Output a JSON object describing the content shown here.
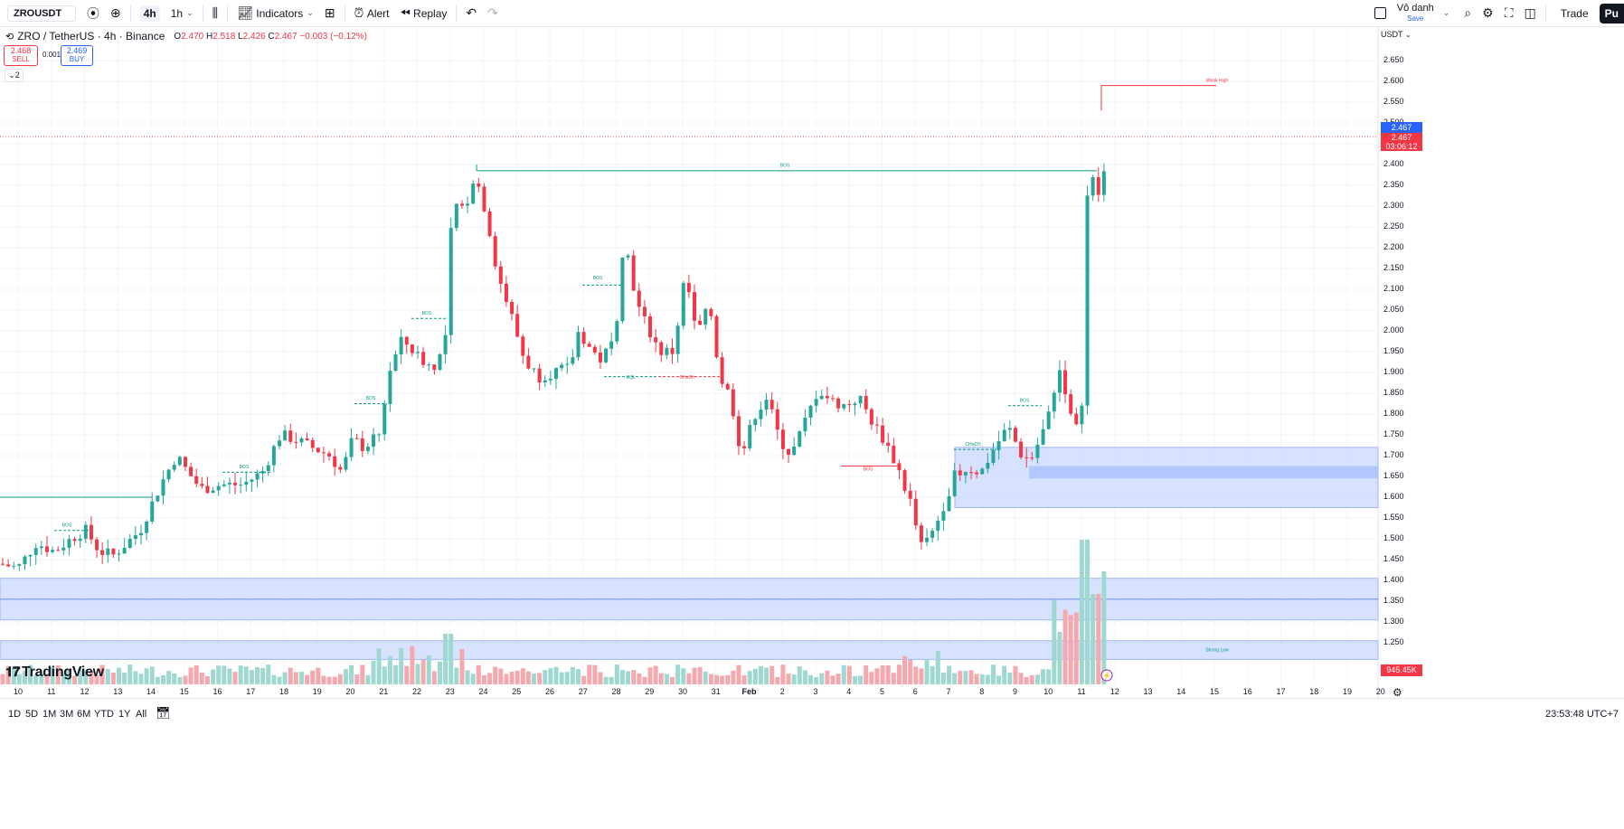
{
  "toolbar": {
    "symbol": "ZROUSDT",
    "intervals": [
      "4h",
      "1h"
    ],
    "indicators": "Indicators",
    "alert": "Alert",
    "replay": "Replay",
    "user_name": "Vô danh",
    "save": "Save",
    "trade": "Trade",
    "publish": "Pu"
  },
  "legend": {
    "title": "ZRO / TetherUS · 4h · Binance",
    "o_label": "O",
    "o": "2.470",
    "h_label": "H",
    "h": "2.518",
    "l_label": "L",
    "l": "2.426",
    "c_label": "C",
    "c": "2.467",
    "change": "−0.003 (−0.12%)"
  },
  "order": {
    "sell_price": "2.468",
    "sell_label": "SELL",
    "spread": "0.001",
    "buy_price": "2.469",
    "buy_label": "BUY",
    "collapse": "2"
  },
  "axis": {
    "currency": "USDT",
    "ticks": [
      "2.650",
      "2.600",
      "2.550",
      "2.500",
      "2.450",
      "2.400",
      "2.350",
      "2.300",
      "2.250",
      "2.200",
      "2.150",
      "2.100",
      "2.050",
      "2.000",
      "1.950",
      "1.900",
      "1.850",
      "1.800",
      "1.750",
      "1.700",
      "1.650",
      "1.600",
      "1.550",
      "1.500",
      "1.450",
      "1.400",
      "1.350",
      "1.300",
      "1.250"
    ],
    "last_price": "2.467",
    "countdown": "03:06:12",
    "volume_label": "945.45K"
  },
  "time_axis": [
    "10",
    "11",
    "12",
    "13",
    "14",
    "15",
    "16",
    "17",
    "18",
    "19",
    "20",
    "21",
    "22",
    "23",
    "24",
    "25",
    "26",
    "27",
    "28",
    "29",
    "30",
    "31",
    "Feb",
    "2",
    "3",
    "4",
    "5",
    "6",
    "7",
    "8",
    "9",
    "10",
    "11",
    "12",
    "13",
    "14",
    "15",
    "16",
    "17",
    "18",
    "19",
    "20"
  ],
  "annotations": {
    "bos": "BOS",
    "choch": "CHoCH",
    "eql": "EQL",
    "weak_high": "Weak High",
    "strong_low": "Strong Low"
  },
  "branding": "TradingView",
  "bottom": {
    "ranges": [
      "1D",
      "5D",
      "1M",
      "3M",
      "6M",
      "YTD",
      "1Y",
      "All"
    ],
    "clock": "23:53:48 UTC+7"
  },
  "colors": {
    "up": "#26a69a",
    "down": "#f23645",
    "zone": "#c5d4fc",
    "accent": "#2962ff"
  }
}
